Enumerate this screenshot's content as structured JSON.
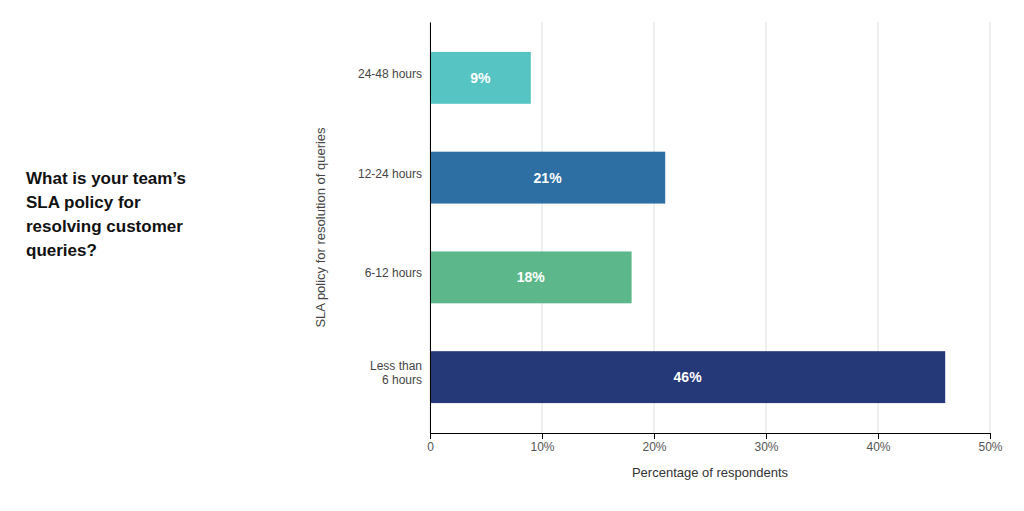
{
  "chart_data": {
    "type": "bar",
    "orientation": "horizontal",
    "title": "What is your team’s\nSLA policy for\nresolving customer\nqueries?",
    "xlabel": "Percentage of respondents",
    "ylabel": "SLA policy for resolution of queries",
    "categories": [
      "Less than\n6 hours",
      "6-12 hours",
      "12-24 hours",
      "24-48 hours"
    ],
    "values": [
      46,
      18,
      21,
      9
    ],
    "value_labels": [
      "46%",
      "18%",
      "21%",
      "9%"
    ],
    "colors": [
      "#253878",
      "#5cb88a",
      "#2e6fa3",
      "#57c4c4"
    ],
    "xlim": [
      0,
      50
    ],
    "xticks": [
      0,
      {
        "value": 10,
        "label": "10%"
      },
      {
        "value": 20,
        "label": "20%"
      },
      {
        "value": 30,
        "label": "30%"
      },
      {
        "value": 40,
        "label": "40%"
      },
      {
        "value": 50,
        "label": "50%"
      }
    ],
    "grid": true,
    "data_labels": true
  }
}
